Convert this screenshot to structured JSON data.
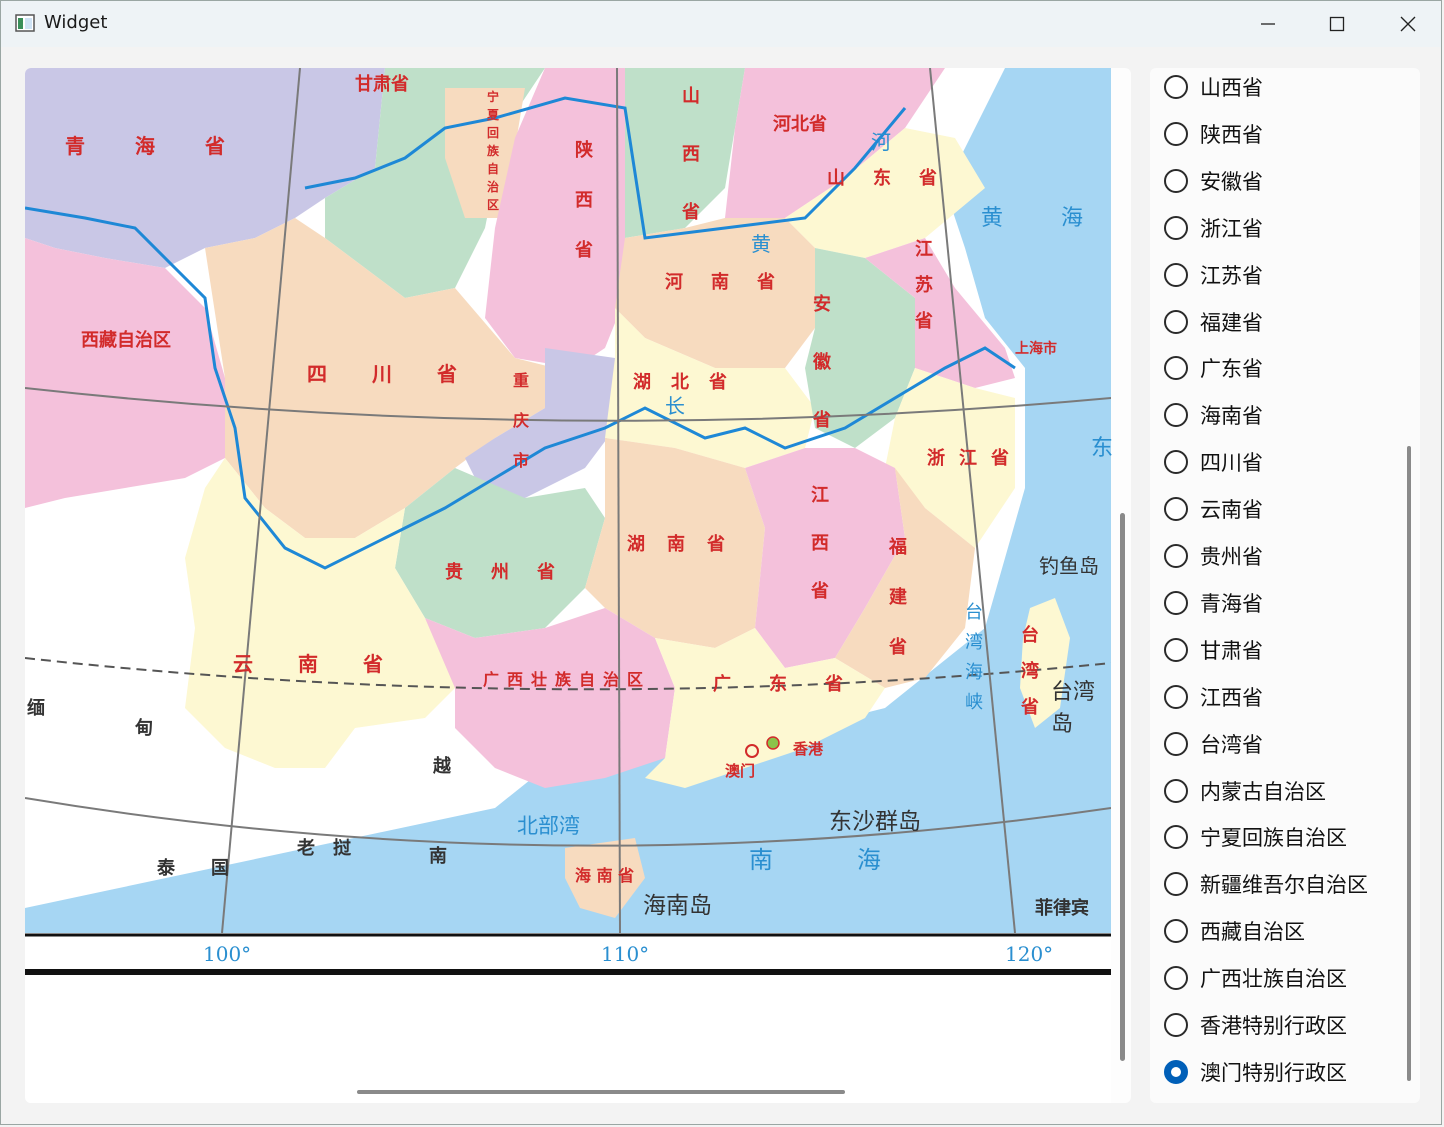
{
  "window": {
    "title": "Widget",
    "controls": [
      "minimize",
      "maximize",
      "close"
    ]
  },
  "map": {
    "province_labels": [
      "青海省",
      "四川省",
      "云南省",
      "贵州省",
      "湖南省",
      "湖北省",
      "河南省",
      "山东省",
      "江苏省",
      "安徽省",
      "浙江省",
      "江西省",
      "福建省",
      "广东省",
      "广西壮族自治区",
      "陕西省",
      "山西省",
      "河北省",
      "重庆市",
      "上海市",
      "台湾省",
      "宁夏回族自治区",
      "甘肃省",
      "西藏自治区"
    ],
    "map_text": {
      "yellow_sea": "黄　海",
      "yellow_river": "黄",
      "yangtze": "长",
      "east_sea": "东",
      "diaoyu": "钓鱼岛",
      "taiwan_island": "台湾岛",
      "taiwan_strait": "台湾海峡",
      "hongkong": "香港",
      "macao": "澳门",
      "beibu": "北部湾",
      "dongsha": "东沙群岛",
      "south_sea": "南　海",
      "hainan_prov": "海 南 省",
      "hainan_island": "海南岛",
      "myanmar": "缅",
      "myanmar2": "甸",
      "vietnam": "越",
      "laos": "老　挝",
      "thailand": "泰　　国",
      "philippines": "菲律宾",
      "xizang_frag": "区",
      "hebei_frag": "河",
      "gansu_frag": "肃",
      "south_frag": "南"
    },
    "longitudes": [
      "100°",
      "110°",
      "120°"
    ]
  },
  "radio_list": {
    "items": [
      {
        "label": "山西省",
        "checked": false
      },
      {
        "label": "陕西省",
        "checked": false
      },
      {
        "label": "安徽省",
        "checked": false
      },
      {
        "label": "浙江省",
        "checked": false
      },
      {
        "label": "江苏省",
        "checked": false
      },
      {
        "label": "福建省",
        "checked": false
      },
      {
        "label": "广东省",
        "checked": false
      },
      {
        "label": "海南省",
        "checked": false
      },
      {
        "label": "四川省",
        "checked": false
      },
      {
        "label": "云南省",
        "checked": false
      },
      {
        "label": "贵州省",
        "checked": false
      },
      {
        "label": "青海省",
        "checked": false
      },
      {
        "label": "甘肃省",
        "checked": false
      },
      {
        "label": "江西省",
        "checked": false
      },
      {
        "label": "台湾省",
        "checked": false
      },
      {
        "label": "内蒙古自治区",
        "checked": false
      },
      {
        "label": "宁夏回族自治区",
        "checked": false
      },
      {
        "label": "新疆维吾尔自治区",
        "checked": false
      },
      {
        "label": "西藏自治区",
        "checked": false
      },
      {
        "label": "广西壮族自治区",
        "checked": false
      },
      {
        "label": "香港特别行政区",
        "checked": false
      },
      {
        "label": "澳门特别行政区",
        "checked": true
      }
    ]
  },
  "colors": {
    "accent": "#005fb8",
    "sea": "#a6d6f3",
    "province_pink": "#f4c1db",
    "province_peach": "#f7dbbf",
    "province_green": "#bfe0c9",
    "province_yellow": "#fdf8d2",
    "province_lavender": "#c9c7e6",
    "label_red": "#d22b2b",
    "river_blue": "#1e88d6"
  }
}
